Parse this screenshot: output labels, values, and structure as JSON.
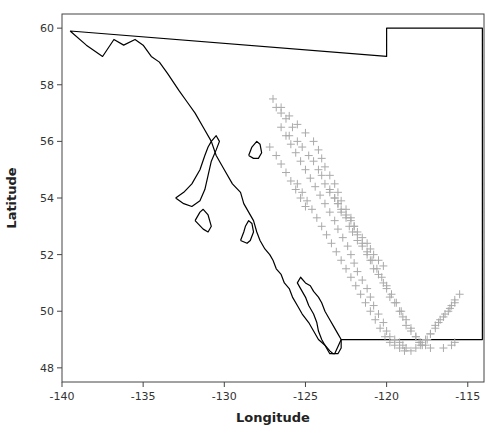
{
  "chart_data": {
    "type": "scatter",
    "xlabel": "Longitude",
    "ylabel": "Latitude",
    "xlim": [
      -140,
      -114
    ],
    "ylim": [
      47.5,
      60.5
    ],
    "xticks": [
      -140,
      -135,
      -130,
      -125,
      -120,
      -115
    ],
    "yticks": [
      48,
      50,
      52,
      54,
      56,
      58,
      60
    ],
    "grid": false,
    "series": [
      {
        "type": "line",
        "color": "#000000",
        "x": [
          -139.5,
          -138.5,
          -137.5,
          -136.8,
          -136.2,
          -135.5,
          -135.0,
          -134.5,
          -134.0,
          -133.5,
          -132.8,
          -132.3,
          -131.8,
          -131.3,
          -130.8,
          -130.5,
          -130.0,
          -129.5,
          -129.0,
          -128.8,
          -128.5,
          -128.2,
          -128.0,
          -127.8,
          -127.5,
          -127.2,
          -127.0,
          -126.8,
          -126.5,
          -126.3,
          -126.0,
          -125.8,
          -125.5,
          -125.2,
          -124.8,
          -124.5,
          -124.2,
          -123.8,
          -123.5,
          -123.2,
          -122.8,
          -122.5,
          -114.1,
          -114.1,
          -120.0,
          -120.0,
          -139.5
        ],
        "values": [
          59.9,
          59.4,
          59.0,
          59.6,
          59.4,
          59.6,
          59.4,
          59.0,
          58.8,
          58.4,
          57.8,
          57.4,
          57.0,
          56.5,
          56.0,
          55.5,
          55.0,
          54.5,
          54.2,
          53.8,
          53.5,
          53.2,
          52.8,
          52.5,
          52.2,
          52.0,
          51.8,
          51.5,
          51.3,
          51.0,
          50.8,
          50.5,
          50.2,
          49.9,
          49.6,
          49.3,
          49.0,
          48.8,
          48.5,
          48.5,
          49.0,
          49.0,
          49.0,
          60.0,
          60.0,
          59.0,
          59.9
        ]
      },
      {
        "type": "line",
        "color": "#000000",
        "x": [
          -133.0,
          -132.5,
          -132.0,
          -131.5,
          -131.2,
          -131.0,
          -130.8,
          -130.5,
          -130.3,
          -130.5,
          -130.8,
          -131.0,
          -131.2,
          -131.5,
          -132.0,
          -132.5,
          -133.0
        ],
        "values": [
          54.0,
          54.2,
          54.5,
          55.0,
          55.5,
          55.8,
          56.0,
          56.2,
          56.0,
          55.7,
          55.3,
          54.8,
          54.3,
          53.9,
          53.7,
          53.8,
          54.0
        ]
      },
      {
        "type": "line",
        "color": "#000000",
        "x": [
          -131.8,
          -131.5,
          -131.3,
          -131.0,
          -130.8,
          -131.0,
          -131.3,
          -131.8
        ],
        "values": [
          53.2,
          53.5,
          53.6,
          53.4,
          53.0,
          52.8,
          52.9,
          53.2
        ]
      },
      {
        "type": "line",
        "color": "#000000",
        "x": [
          -129.0,
          -128.8,
          -128.7,
          -128.5,
          -128.3,
          -128.2,
          -128.4,
          -128.6,
          -129.0
        ],
        "values": [
          52.5,
          52.8,
          53.0,
          53.2,
          53.1,
          52.8,
          52.5,
          52.4,
          52.5
        ]
      },
      {
        "type": "line",
        "color": "#000000",
        "x": [
          -124.0,
          -123.8,
          -123.5,
          -123.3,
          -123.0,
          -122.8,
          -122.8,
          -123.0,
          -123.3,
          -123.5,
          -123.8,
          -124.0,
          -124.2,
          -124.5,
          -124.7,
          -125.0,
          -125.3,
          -125.5,
          -125.3,
          -125.0,
          -124.8,
          -124.5,
          -124.3,
          -124.2,
          -124.0
        ],
        "values": [
          49.0,
          48.8,
          48.6,
          48.5,
          48.5,
          48.7,
          49.0,
          49.2,
          49.5,
          49.7,
          50.0,
          50.3,
          50.5,
          50.7,
          50.9,
          51.0,
          51.2,
          51.0,
          50.8,
          50.5,
          50.2,
          49.9,
          49.6,
          49.3,
          49.0
        ]
      },
      {
        "type": "line",
        "color": "#000000",
        "x": [
          -128.5,
          -128.3,
          -128.0,
          -127.8,
          -127.7,
          -127.9,
          -128.2,
          -128.5
        ],
        "values": [
          55.5,
          55.8,
          56.0,
          55.9,
          55.6,
          55.4,
          55.4,
          55.5
        ]
      },
      {
        "type": "scatter",
        "color": "#aaaaaa",
        "marker": "+",
        "x": [
          -126.8,
          -126.5,
          -126.2,
          -125.8,
          -126.0,
          -125.5,
          -125.2,
          -124.8,
          -124.5,
          -124.2,
          -124.0,
          -123.8,
          -123.5,
          -123.2,
          -123.0,
          -122.8,
          -122.5,
          -122.3,
          -122.1,
          -121.8,
          -121.5,
          -121.2,
          -121.0,
          -120.8,
          -120.5,
          -120.2,
          -120.0,
          -119.8,
          -119.5,
          -119.2,
          -119.0,
          -118.8,
          -118.5,
          -118.2,
          -118.0,
          -117.8,
          -117.5,
          -117.3,
          -117.0,
          -116.8,
          -116.5,
          -116.2,
          -116.0,
          -115.8,
          -115.5,
          -126.5,
          -126.2,
          -125.9,
          -125.6,
          -125.3,
          -125.0,
          -124.7,
          -124.4,
          -124.1,
          -123.8,
          -123.5,
          -123.2,
          -123.0,
          -122.7,
          -122.4,
          -122.2,
          -122.0,
          -121.8,
          -121.5,
          -121.2,
          -121.0,
          -120.8,
          -120.5,
          -120.2,
          -120.0,
          -119.8,
          -119.5,
          -119.2,
          -119.0,
          -118.8,
          -118.5,
          -118.2,
          -117.9,
          -117.6,
          -117.3,
          -117.0,
          -116.7,
          -116.4,
          -116.1,
          -115.8,
          -127.0,
          -126.5,
          -126.0,
          -125.5,
          -125.0,
          -124.5,
          -124.2,
          -124.0,
          -123.8,
          -123.5,
          -123.2,
          -123.0,
          -122.8,
          -122.5,
          -122.2,
          -122.0,
          -121.8,
          -121.5,
          -121.2,
          -120.9,
          -120.6,
          -120.3,
          -120.0,
          -119.7,
          -119.4,
          -119.1,
          -118.8,
          -118.5,
          -118.2,
          -117.9,
          -117.6,
          -117.3,
          -116.5,
          -116.0,
          -115.8,
          -125.5,
          -125.2,
          -124.9,
          -124.6,
          -124.3,
          -124.0,
          -123.7,
          -123.4,
          -123.1,
          -122.8,
          -122.5,
          -122.2,
          -121.9,
          -121.6,
          -121.3,
          -121.0,
          -120.7,
          -120.4,
          -120.1,
          -119.8,
          -119.5,
          -119.2,
          -118.9,
          -123.5,
          -123.2,
          -123.0,
          -122.8,
          -122.5,
          -122.2,
          -122.0,
          -121.8,
          -121.5,
          -121.2,
          -121.0,
          -120.8,
          -120.5,
          -120.2,
          -127.2,
          -126.8,
          -126.5,
          -126.2,
          -125.9,
          -125.6,
          -125.3,
          -125.0
        ],
        "values": [
          57.2,
          57.0,
          56.8,
          56.5,
          56.2,
          56.0,
          55.8,
          55.5,
          55.3,
          55.0,
          54.8,
          54.5,
          54.3,
          54.0,
          53.8,
          53.5,
          53.3,
          53.0,
          52.8,
          52.5,
          52.3,
          52.0,
          51.8,
          51.5,
          51.3,
          51.0,
          50.8,
          50.5,
          50.3,
          50.0,
          49.8,
          49.5,
          49.3,
          49.1,
          48.9,
          48.8,
          49.0,
          49.2,
          49.4,
          49.6,
          49.8,
          50.0,
          50.2,
          50.4,
          50.6,
          56.5,
          56.2,
          55.9,
          55.6,
          55.3,
          55.0,
          54.7,
          54.4,
          54.1,
          53.8,
          53.5,
          53.2,
          52.9,
          52.6,
          52.3,
          52.0,
          51.7,
          51.4,
          51.1,
          50.8,
          50.5,
          50.2,
          49.9,
          49.6,
          49.3,
          49.1,
          49.0,
          48.9,
          48.8,
          48.7,
          48.6,
          48.7,
          48.8,
          49.0,
          49.2,
          49.5,
          49.7,
          49.9,
          50.1,
          50.3,
          57.5,
          57.2,
          56.9,
          56.6,
          56.3,
          56.0,
          55.7,
          55.4,
          55.1,
          54.8,
          54.5,
          54.2,
          53.9,
          53.6,
          53.3,
          53.0,
          52.7,
          52.4,
          52.1,
          51.8,
          51.5,
          51.2,
          50.9,
          50.6,
          50.3,
          50.0,
          49.7,
          49.4,
          49.1,
          48.9,
          48.8,
          48.7,
          48.7,
          48.8,
          48.9,
          54.5,
          54.2,
          53.9,
          53.6,
          53.3,
          53.0,
          52.7,
          52.4,
          52.1,
          51.8,
          51.5,
          51.2,
          50.9,
          50.6,
          50.3,
          50.0,
          49.7,
          49.4,
          49.1,
          48.9,
          48.8,
          48.7,
          48.6,
          54.2,
          54.0,
          53.8,
          53.6,
          53.4,
          53.2,
          53.0,
          52.8,
          52.6,
          52.4,
          52.2,
          52.0,
          51.8,
          51.6,
          55.8,
          55.5,
          55.2,
          54.9,
          54.6,
          54.3,
          54.0,
          53.7
        ]
      }
    ]
  }
}
